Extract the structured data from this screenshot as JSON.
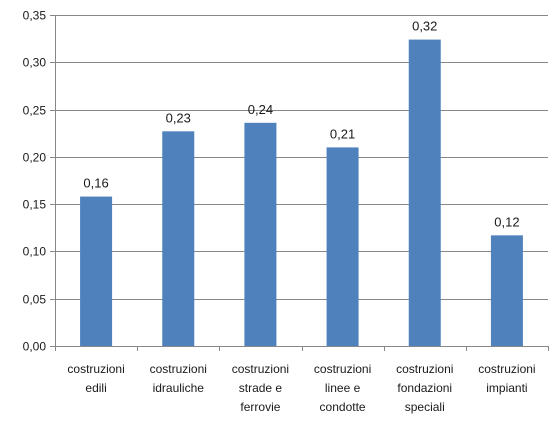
{
  "chart_data": {
    "type": "bar",
    "categories": [
      [
        "costruzioni",
        "edili"
      ],
      [
        "costruzioni",
        "idrauliche"
      ],
      [
        "costruzioni",
        "strade e",
        "ferrovie"
      ],
      [
        "costruzioni",
        "linee e",
        "condotte"
      ],
      [
        "costruzioni",
        "fondazioni",
        "speciali"
      ],
      [
        "costruzioni",
        "impianti"
      ]
    ],
    "values": [
      0.158,
      0.227,
      0.236,
      0.21,
      0.324,
      0.117
    ],
    "data_labels": [
      "0,16",
      "0,23",
      "0,24",
      "0,21",
      "0,32",
      "0,12"
    ],
    "y_ticks": [
      "0,00",
      "0,05",
      "0,10",
      "0,15",
      "0,20",
      "0,25",
      "0,30",
      "0,35"
    ],
    "ylim": [
      0,
      0.35
    ],
    "ystep": 0.05,
    "grid": true,
    "legend": "none",
    "colors": {
      "bar": "#4f81bd",
      "grid": "#878787",
      "axis": "#878787"
    }
  }
}
